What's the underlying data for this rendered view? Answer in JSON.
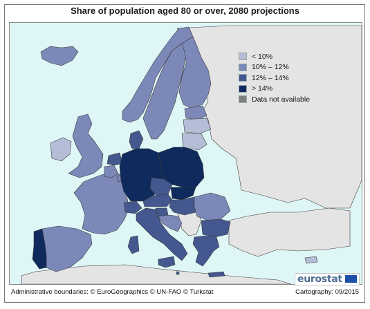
{
  "title": "Share of population aged 80 or over, 2080 projections",
  "colors": {
    "sea": "#dff6f6",
    "land_other": "#e4e4e4",
    "borders": "#3a3a3a",
    "lt10": "#b4bcd6",
    "c10_12": "#7c88b8",
    "c12_14": "#45578f",
    "gt14": "#0f2a5c",
    "na": "#808080"
  },
  "legend": [
    {
      "label": "< 10%",
      "color": "#b4bcd6"
    },
    {
      "label": "10% – 12%",
      "color": "#7c88b8"
    },
    {
      "label": "12% – 14%",
      "color": "#45578f"
    },
    {
      "label": "> 14%",
      "color": "#0f2a5c"
    },
    {
      "label": "Data not available",
      "color": "#808080"
    }
  ],
  "map_data": {
    "countries": [
      {
        "country": "Iceland",
        "class": "10% – 12%"
      },
      {
        "country": "Ireland",
        "class": "< 10%"
      },
      {
        "country": "United Kingdom",
        "class": "10% – 12%"
      },
      {
        "country": "Norway",
        "class": "10% – 12%"
      },
      {
        "country": "Sweden",
        "class": "10% – 12%"
      },
      {
        "country": "Finland",
        "class": "10% – 12%"
      },
      {
        "country": "Estonia",
        "class": "10% – 12%"
      },
      {
        "country": "Latvia",
        "class": "< 10%"
      },
      {
        "country": "Lithuania",
        "class": "< 10%"
      },
      {
        "country": "Denmark",
        "class": "12% – 14%"
      },
      {
        "country": "Netherlands",
        "class": "12% – 14%"
      },
      {
        "country": "Belgium",
        "class": "10% – 12%"
      },
      {
        "country": "Luxembourg",
        "class": "10% – 12%"
      },
      {
        "country": "Germany",
        "class": "> 14%"
      },
      {
        "country": "Poland",
        "class": "> 14%"
      },
      {
        "country": "Czech Republic",
        "class": "12% – 14%"
      },
      {
        "country": "Slovakia",
        "class": "> 14%"
      },
      {
        "country": "Austria",
        "class": "12% – 14%"
      },
      {
        "country": "Switzerland",
        "class": "12% – 14%"
      },
      {
        "country": "Hungary",
        "class": "12% – 14%"
      },
      {
        "country": "Slovenia",
        "class": "12% – 14%"
      },
      {
        "country": "Croatia",
        "class": "10% – 12%"
      },
      {
        "country": "France",
        "class": "10% – 12%"
      },
      {
        "country": "Spain",
        "class": "10% – 12%"
      },
      {
        "country": "Portugal",
        "class": "> 14%"
      },
      {
        "country": "Italy",
        "class": "12% – 14%"
      },
      {
        "country": "Malta",
        "class": "12% – 14%"
      },
      {
        "country": "Romania",
        "class": "10% – 12%"
      },
      {
        "country": "Bulgaria",
        "class": "12% – 14%"
      },
      {
        "country": "Greece",
        "class": "12% – 14%"
      },
      {
        "country": "Cyprus",
        "class": "< 10%"
      }
    ]
  },
  "footer": {
    "left": "Administrative boundaries: © EuroGeographics © UN-FAO © Turkstat",
    "right": "Cartography: 09/2015"
  },
  "brand": {
    "logo_text": "eurostat"
  }
}
